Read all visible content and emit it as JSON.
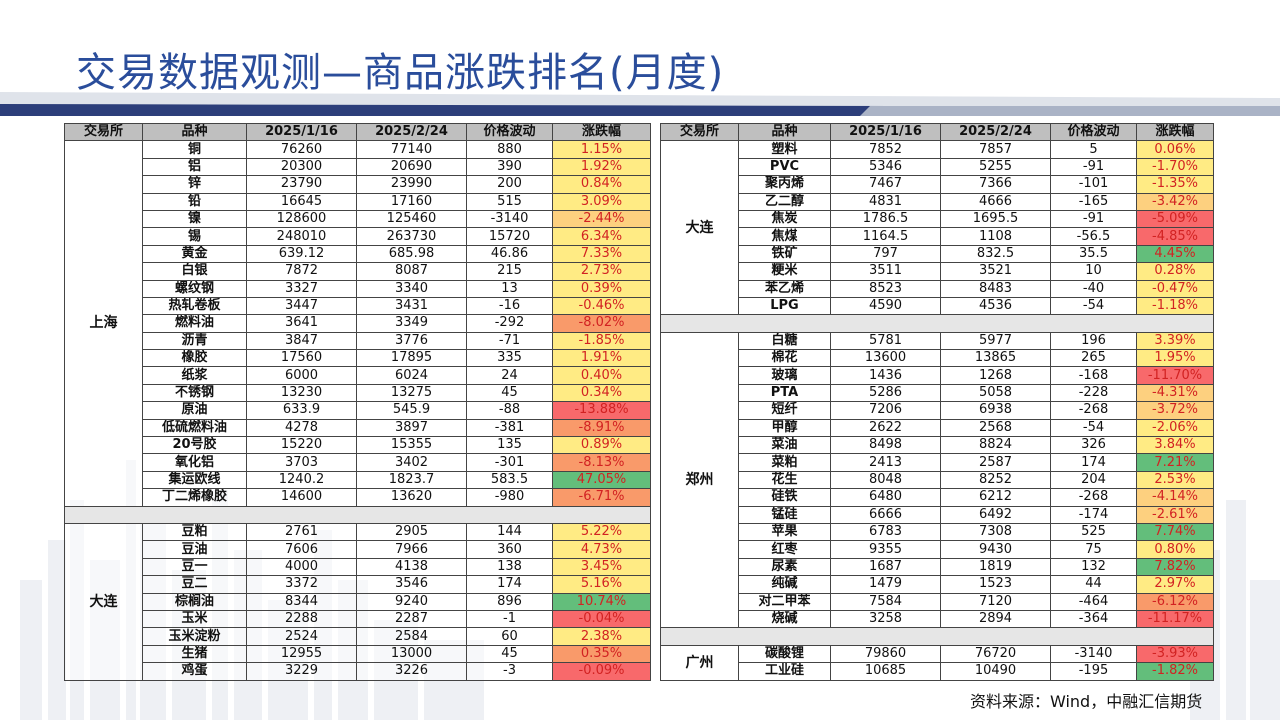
{
  "title": "交易数据观测—商品涨跌排名(月度)",
  "headers": [
    "交易所",
    "品种",
    "2025/1/16",
    "2025/2/24",
    "价格波动",
    "涨跌幅"
  ],
  "colors": {
    "title": "#2a4d9b",
    "green": "#63be7b",
    "light_green": "#c7e08d",
    "yellow": "#ffeb84",
    "light_orange": "#fdd07f",
    "orange": "#f99a6a",
    "red": "#f8696b"
  },
  "left_table": {
    "groups": [
      {
        "exchange": "上海",
        "rows": [
          {
            "name": "铜",
            "v1": "76260",
            "v2": "77140",
            "diff": "880",
            "pct": "1.15%",
            "color": "#ffeb84"
          },
          {
            "name": "铝",
            "v1": "20300",
            "v2": "20690",
            "diff": "390",
            "pct": "1.92%",
            "color": "#ffeb84"
          },
          {
            "name": "锌",
            "v1": "23790",
            "v2": "23990",
            "diff": "200",
            "pct": "0.84%",
            "color": "#ffeb84"
          },
          {
            "name": "铅",
            "v1": "16645",
            "v2": "17160",
            "diff": "515",
            "pct": "3.09%",
            "color": "#ffeb84"
          },
          {
            "name": "镍",
            "v1": "128600",
            "v2": "125460",
            "diff": "-3140",
            "pct": "-2.44%",
            "color": "#fdd07f"
          },
          {
            "name": "锡",
            "v1": "248010",
            "v2": "263730",
            "diff": "15720",
            "pct": "6.34%",
            "color": "#ffeb84"
          },
          {
            "name": "黄金",
            "v1": "639.12",
            "v2": "685.98",
            "diff": "46.86",
            "pct": "7.33%",
            "color": "#ffeb84"
          },
          {
            "name": "白银",
            "v1": "7872",
            "v2": "8087",
            "diff": "215",
            "pct": "2.73%",
            "color": "#ffeb84"
          },
          {
            "name": "螺纹钢",
            "v1": "3327",
            "v2": "3340",
            "diff": "13",
            "pct": "0.39%",
            "color": "#ffeb84"
          },
          {
            "name": "热轧卷板",
            "v1": "3447",
            "v2": "3431",
            "diff": "-16",
            "pct": "-0.46%",
            "color": "#ffeb84"
          },
          {
            "name": "燃料油",
            "v1": "3641",
            "v2": "3349",
            "diff": "-292",
            "pct": "-8.02%",
            "color": "#f99a6a"
          },
          {
            "name": "沥青",
            "v1": "3847",
            "v2": "3776",
            "diff": "-71",
            "pct": "-1.85%",
            "color": "#ffeb84"
          },
          {
            "name": "橡胶",
            "v1": "17560",
            "v2": "17895",
            "diff": "335",
            "pct": "1.91%",
            "color": "#ffeb84"
          },
          {
            "name": "纸浆",
            "v1": "6000",
            "v2": "6024",
            "diff": "24",
            "pct": "0.40%",
            "color": "#ffeb84"
          },
          {
            "name": "不锈钢",
            "v1": "13230",
            "v2": "13275",
            "diff": "45",
            "pct": "0.34%",
            "color": "#ffeb84"
          },
          {
            "name": "原油",
            "v1": "633.9",
            "v2": "545.9",
            "diff": "-88",
            "pct": "-13.88%",
            "color": "#f8696b"
          },
          {
            "name": "低硫燃料油",
            "v1": "4278",
            "v2": "3897",
            "diff": "-381",
            "pct": "-8.91%",
            "color": "#f99a6a"
          },
          {
            "name": "20号胶",
            "v1": "15220",
            "v2": "15355",
            "diff": "135",
            "pct": "0.89%",
            "color": "#ffeb84"
          },
          {
            "name": "氧化铝",
            "v1": "3703",
            "v2": "3402",
            "diff": "-301",
            "pct": "-8.13%",
            "color": "#f99a6a"
          },
          {
            "name": "集运欧线",
            "v1": "1240.2",
            "v2": "1823.7",
            "diff": "583.5",
            "pct": "47.05%",
            "color": "#63be7b"
          },
          {
            "name": "丁二烯橡胶",
            "v1": "14600",
            "v2": "13620",
            "diff": "-980",
            "pct": "-6.71%",
            "color": "#f99a6a"
          }
        ]
      },
      {
        "exchange": "大连",
        "rows": [
          {
            "name": "豆粕",
            "v1": "2761",
            "v2": "2905",
            "diff": "144",
            "pct": "5.22%",
            "color": "#ffeb84"
          },
          {
            "name": "豆油",
            "v1": "7606",
            "v2": "7966",
            "diff": "360",
            "pct": "4.73%",
            "color": "#ffeb84"
          },
          {
            "name": "豆一",
            "v1": "4000",
            "v2": "4138",
            "diff": "138",
            "pct": "3.45%",
            "color": "#ffeb84"
          },
          {
            "name": "豆二",
            "v1": "3372",
            "v2": "3546",
            "diff": "174",
            "pct": "5.16%",
            "color": "#ffeb84"
          },
          {
            "name": "棕榈油",
            "v1": "8344",
            "v2": "9240",
            "diff": "896",
            "pct": "10.74%",
            "color": "#63be7b"
          },
          {
            "name": "玉米",
            "v1": "2288",
            "v2": "2287",
            "diff": "-1",
            "pct": "-0.04%",
            "color": "#f8696b"
          },
          {
            "name": "玉米淀粉",
            "v1": "2524",
            "v2": "2584",
            "diff": "60",
            "pct": "2.38%",
            "color": "#ffeb84"
          },
          {
            "name": "生猪",
            "v1": "12955",
            "v2": "13000",
            "diff": "45",
            "pct": "0.35%",
            "color": "#f99a6a"
          },
          {
            "name": "鸡蛋",
            "v1": "3229",
            "v2": "3226",
            "diff": "-3",
            "pct": "-0.09%",
            "color": "#f8696b"
          }
        ]
      }
    ]
  },
  "right_table": {
    "groups": [
      {
        "exchange": "大连",
        "rows": [
          {
            "name": "塑料",
            "v1": "7852",
            "v2": "7857",
            "diff": "5",
            "pct": "0.06%",
            "color": "#ffeb84"
          },
          {
            "name": "PVC",
            "v1": "5346",
            "v2": "5255",
            "diff": "-91",
            "pct": "-1.70%",
            "color": "#ffeb84"
          },
          {
            "name": "聚丙烯",
            "v1": "7467",
            "v2": "7366",
            "diff": "-101",
            "pct": "-1.35%",
            "color": "#ffeb84"
          },
          {
            "name": "乙二醇",
            "v1": "4831",
            "v2": "4666",
            "diff": "-165",
            "pct": "-3.42%",
            "color": "#fdd07f"
          },
          {
            "name": "焦炭",
            "v1": "1786.5",
            "v2": "1695.5",
            "diff": "-91",
            "pct": "-5.09%",
            "color": "#f8696b"
          },
          {
            "name": "焦煤",
            "v1": "1164.5",
            "v2": "1108",
            "diff": "-56.5",
            "pct": "-4.85%",
            "color": "#f8696b"
          },
          {
            "name": "铁矿",
            "v1": "797",
            "v2": "832.5",
            "diff": "35.5",
            "pct": "4.45%",
            "color": "#63be7b"
          },
          {
            "name": "粳米",
            "v1": "3511",
            "v2": "3521",
            "diff": "10",
            "pct": "0.28%",
            "color": "#ffeb84"
          },
          {
            "name": "苯乙烯",
            "v1": "8523",
            "v2": "8483",
            "diff": "-40",
            "pct": "-0.47%",
            "color": "#ffeb84"
          },
          {
            "name": "LPG",
            "v1": "4590",
            "v2": "4536",
            "diff": "-54",
            "pct": "-1.18%",
            "color": "#ffeb84"
          }
        ]
      },
      {
        "exchange": "郑州",
        "rows": [
          {
            "name": "白糖",
            "v1": "5781",
            "v2": "5977",
            "diff": "196",
            "pct": "3.39%",
            "color": "#ffeb84"
          },
          {
            "name": "棉花",
            "v1": "13600",
            "v2": "13865",
            "diff": "265",
            "pct": "1.95%",
            "color": "#ffeb84"
          },
          {
            "name": "玻璃",
            "v1": "1436",
            "v2": "1268",
            "diff": "-168",
            "pct": "-11.70%",
            "color": "#f8696b"
          },
          {
            "name": "PTA",
            "v1": "5286",
            "v2": "5058",
            "diff": "-228",
            "pct": "-4.31%",
            "color": "#fdd07f"
          },
          {
            "name": "短纤",
            "v1": "7206",
            "v2": "6938",
            "diff": "-268",
            "pct": "-3.72%",
            "color": "#fdd07f"
          },
          {
            "name": "甲醇",
            "v1": "2622",
            "v2": "2568",
            "diff": "-54",
            "pct": "-2.06%",
            "color": "#ffeb84"
          },
          {
            "name": "菜油",
            "v1": "8498",
            "v2": "8824",
            "diff": "326",
            "pct": "3.84%",
            "color": "#ffeb84"
          },
          {
            "name": "菜粕",
            "v1": "2413",
            "v2": "2587",
            "diff": "174",
            "pct": "7.21%",
            "color": "#63be7b"
          },
          {
            "name": "花生",
            "v1": "8048",
            "v2": "8252",
            "diff": "204",
            "pct": "2.53%",
            "color": "#ffeb84"
          },
          {
            "name": "硅铁",
            "v1": "6480",
            "v2": "6212",
            "diff": "-268",
            "pct": "-4.14%",
            "color": "#fdd07f"
          },
          {
            "name": "锰硅",
            "v1": "6666",
            "v2": "6492",
            "diff": "-174",
            "pct": "-2.61%",
            "color": "#fdd07f"
          },
          {
            "name": "苹果",
            "v1": "6783",
            "v2": "7308",
            "diff": "525",
            "pct": "7.74%",
            "color": "#63be7b"
          },
          {
            "name": "红枣",
            "v1": "9355",
            "v2": "9430",
            "diff": "75",
            "pct": "0.80%",
            "color": "#ffeb84"
          },
          {
            "name": "尿素",
            "v1": "1687",
            "v2": "1819",
            "diff": "132",
            "pct": "7.82%",
            "color": "#63be7b"
          },
          {
            "name": "纯碱",
            "v1": "1479",
            "v2": "1523",
            "diff": "44",
            "pct": "2.97%",
            "color": "#ffeb84"
          },
          {
            "name": "对二甲苯",
            "v1": "7584",
            "v2": "7120",
            "diff": "-464",
            "pct": "-6.12%",
            "color": "#f99a6a"
          },
          {
            "name": "烧碱",
            "v1": "3258",
            "v2": "2894",
            "diff": "-364",
            "pct": "-11.17%",
            "color": "#f8696b"
          }
        ]
      },
      {
        "exchange": "广州",
        "rows": [
          {
            "name": "碳酸锂",
            "v1": "79860",
            "v2": "76720",
            "diff": "-3140",
            "pct": "-3.93%",
            "color": "#f8696b"
          },
          {
            "name": "工业硅",
            "v1": "10685",
            "v2": "10490",
            "diff": "-195",
            "pct": "-1.82%",
            "color": "#63be7b"
          }
        ]
      }
    ]
  },
  "footnote": "资料来源：Wind，中融汇信期货"
}
